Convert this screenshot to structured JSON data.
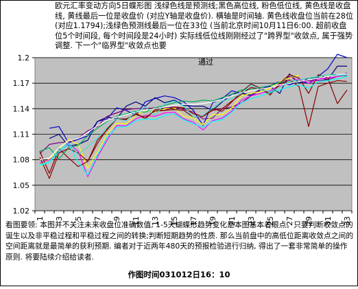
{
  "header_text": "欧元汇率变动方向5日蝶形图  浅绿色线是预测线;黑色高位线, 粉色低位线, 黄色线是收盘线, 黄线最后一位是收盘价 (对应Y轴是收盘价). 横轴是时间轴. 黄色线收盘位当前在28位 (对应1.1794);浅绿色预测线最后一位在33位 (当前北京时间10月11日6:00. 超前收盘位5个时间段, 每个时间段是24小时) 实际线低位线刚刚经过了\"跨界型\"收敛点, 属于强势调整. 下一个\"临界型\"收敛点也要",
  "annotation_text": "通过",
  "footer_text": "看图要领: 本图并不关注未来收盘位准确数值, 1-5天蝴蝶形趋势变化是本图基本着眼点。只要判断收敛点的诞生以及非平稳过程和平稳过程之间的转换;判断短期趋势的性质. 那么当前盘中的高低位距离收敛点之间的空间距离就是最简单的获利预期. 编者对于近两年480天的预报检验进行归纳, 得出了一套非常简单的操作原则. 将要陆续介绍给读者.",
  "time_text": "作图时间031012日16：10",
  "chart_data": {
    "type": "line",
    "x": [
      1,
      2,
      3,
      4,
      5,
      6,
      7,
      8,
      9,
      10,
      11,
      12,
      13,
      14,
      15,
      16,
      17,
      18,
      19,
      20,
      21,
      22,
      23,
      24,
      25,
      26,
      27,
      28,
      29,
      30,
      31,
      32,
      33
    ],
    "x_tick_labels": [
      "1",
      "3",
      "5",
      "7",
      "9",
      "11",
      "13",
      "15",
      "17",
      "19",
      "21",
      "23",
      "25",
      "27",
      "29",
      "31",
      "33"
    ],
    "y_ticks": [
      "1.02",
      "1.05",
      "1.08",
      "1.11",
      "1.14",
      "1.17",
      "1.2"
    ],
    "ylim": [
      1.02,
      1.2
    ],
    "grid": true,
    "plot_background": "#c0c0c0",
    "series": [
      {
        "color": "#0000cc",
        "values": [
          null,
          1.117,
          1.119,
          1.1,
          1.104,
          1.108,
          1.125,
          1.128,
          1.141,
          1.138,
          1.132,
          1.148,
          1.152,
          1.155,
          1.153,
          1.148,
          1.138,
          1.12,
          1.147,
          1.152,
          1.161,
          1.158,
          1.156,
          1.163,
          1.167,
          1.172,
          1.168,
          1.172,
          1.17,
          1.178,
          1.187,
          1.204,
          1.2
        ]
      },
      {
        "color": "#000080",
        "values": [
          null,
          1.105,
          1.11,
          1.096,
          1.098,
          1.103,
          1.125,
          1.13,
          1.128,
          1.143,
          1.148,
          1.143,
          1.153,
          1.147,
          1.15,
          1.144,
          1.143,
          1.143,
          1.138,
          1.148,
          1.157,
          1.159,
          1.155,
          1.162,
          1.166,
          1.158,
          1.181,
          1.17,
          1.176,
          1.177,
          1.174,
          1.19,
          1.19
        ]
      },
      {
        "color": "#800080",
        "values": [
          1.087,
          1.098,
          1.1,
          1.101,
          1.105,
          1.114,
          1.119,
          1.131,
          1.135,
          1.139,
          1.14,
          1.14,
          1.141,
          1.141,
          1.142,
          1.139,
          1.136,
          1.128,
          1.129,
          1.14,
          1.142,
          1.147,
          1.155,
          1.163,
          1.165,
          1.168,
          1.178,
          1.172,
          1.173,
          1.173,
          1.174,
          1.178,
          1.182
        ]
      },
      {
        "color": "#ffff00",
        "values": [
          1.072,
          1.081,
          1.092,
          1.104,
          1.098,
          1.07,
          1.089,
          1.11,
          1.123,
          1.122,
          1.132,
          1.138,
          1.136,
          1.14,
          1.141,
          1.131,
          1.129,
          1.121,
          1.133,
          1.133,
          1.141,
          1.155,
          1.158,
          1.16,
          1.164,
          1.172,
          1.176,
          1.1794,
          null,
          null,
          null,
          null,
          null
        ]
      },
      {
        "color": "#ff00ff",
        "values": [
          1.076,
          1.08,
          1.088,
          1.099,
          1.09,
          1.06,
          1.083,
          1.103,
          1.12,
          1.12,
          1.128,
          1.132,
          1.131,
          1.135,
          1.136,
          1.128,
          1.124,
          1.115,
          1.126,
          1.129,
          1.137,
          1.15,
          1.155,
          1.158,
          1.161,
          1.167,
          1.172,
          1.175,
          1.17,
          1.175,
          1.176,
          1.178,
          1.179
        ]
      },
      {
        "color": "#800000",
        "values": [
          1.09,
          1.064,
          1.093,
          1.082,
          1.072,
          1.078,
          1.103,
          1.115,
          1.128,
          1.127,
          1.135,
          1.128,
          1.139,
          1.138,
          1.142,
          1.141,
          1.134,
          1.131,
          1.14,
          1.137,
          1.148,
          1.16,
          1.169,
          1.164,
          1.156,
          1.17,
          1.18,
          1.176,
          1.158,
          1.18,
          1.176,
          1.146,
          1.162
        ]
      },
      {
        "color": "#00aa55",
        "values": [
          1.09,
          1.094,
          1.081,
          1.094,
          1.097,
          1.108,
          1.117,
          1.125,
          1.131,
          1.134,
          1.137,
          1.136,
          1.141,
          1.144,
          1.147,
          1.149,
          1.148,
          1.15,
          1.149,
          1.153,
          1.157,
          1.162,
          1.163,
          1.165,
          1.167,
          1.171,
          1.171,
          1.172,
          1.174,
          1.178,
          1.18,
          1.18,
          1.178
        ]
      },
      {
        "color": "#8b0000",
        "values": [
          1.083,
          1.058,
          1.088,
          1.093,
          1.088,
          1.078,
          1.099,
          1.116,
          1.128,
          1.128,
          1.133,
          1.13,
          1.137,
          1.138,
          1.139,
          1.138,
          1.13,
          1.131,
          1.138,
          1.14,
          1.149,
          1.157,
          1.165,
          1.163,
          1.158,
          1.168,
          1.174,
          1.166,
          1.119,
          1.166,
          1.17,
          1.173,
          1.172
        ]
      },
      {
        "color": "#00ffff",
        "values": [
          1.073,
          1.077,
          1.089,
          1.098,
          1.077,
          1.062,
          1.085,
          1.106,
          1.118,
          1.119,
          1.126,
          1.128,
          1.127,
          1.132,
          1.134,
          1.127,
          1.122,
          1.118,
          1.125,
          1.127,
          1.136,
          1.147,
          1.152,
          1.155,
          1.159,
          1.162,
          1.166,
          1.168,
          1.164,
          1.172,
          1.173,
          1.175,
          1.178
        ]
      },
      {
        "color": "#ffffff",
        "values": [
          1.08,
          1.082,
          1.094,
          1.102,
          1.105,
          1.112,
          1.12,
          1.126,
          1.13,
          1.133,
          1.136,
          1.138,
          1.14,
          1.142,
          1.144,
          1.145,
          1.145,
          1.146,
          1.148,
          1.151,
          1.155,
          1.159,
          1.161,
          1.163,
          1.165,
          1.168,
          1.17,
          1.172,
          1.174,
          1.176,
          1.178,
          1.18,
          1.181
        ]
      },
      {
        "color": "#40e0d0",
        "values": [
          1.074,
          1.078,
          1.092,
          1.1,
          1.086,
          1.095,
          1.105,
          1.118,
          1.128,
          1.126,
          1.136,
          1.142,
          1.132,
          1.146,
          1.149,
          1.143,
          1.13,
          1.132,
          1.141,
          1.149,
          1.152,
          1.158,
          1.168,
          1.162,
          1.16,
          1.165,
          1.172,
          1.174,
          1.176,
          1.178,
          1.18,
          1.179,
          1.18
        ]
      }
    ]
  }
}
